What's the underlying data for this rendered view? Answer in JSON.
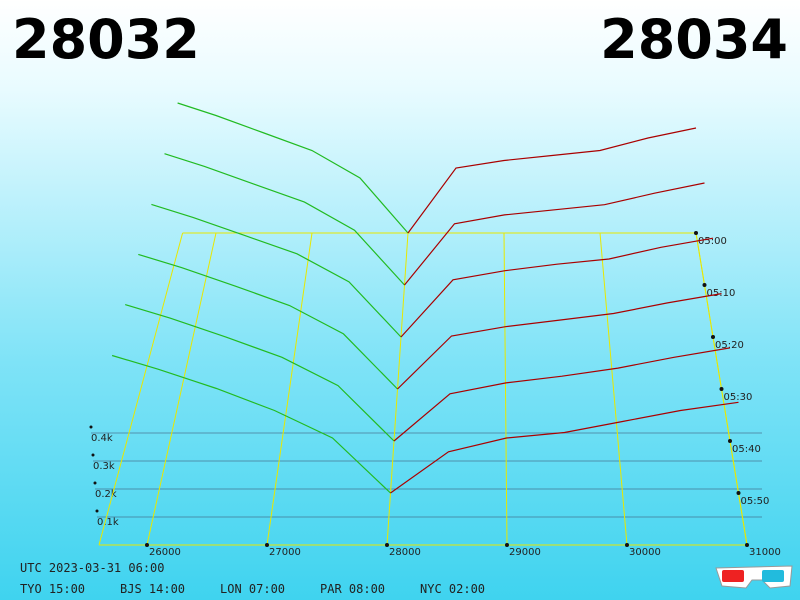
{
  "chart_data": {
    "type": "depth3d",
    "bid_price": 28032,
    "ask_price": 28034,
    "bid_color": "#22bb22",
    "ask_color": "#aa0000",
    "xticks": [
      26000,
      27000,
      28000,
      29000,
      30000,
      31000
    ],
    "depth_ticks": [
      {
        "value": 100,
        "label": "0.1k"
      },
      {
        "value": 200,
        "label": "0.2k"
      },
      {
        "value": 300,
        "label": "0.3k"
      },
      {
        "value": 400,
        "label": "0.4k"
      }
    ],
    "bid_prices": [
      25600,
      26000,
      26500,
      27000,
      27500,
      28000
    ],
    "ask_prices": [
      28000,
      28500,
      29000,
      29500,
      30000,
      30500,
      31000
    ],
    "slices": [
      {
        "time": "05:00",
        "bids": [
          520,
          470,
          400,
          330,
          220,
          0
        ],
        "asks": [
          0,
          260,
          290,
          310,
          330,
          380,
          420
        ]
      },
      {
        "time": "05:10",
        "bids": [
          515,
          465,
          395,
          325,
          215,
          0
        ],
        "asks": [
          0,
          240,
          275,
          295,
          315,
          360,
          400
        ]
      },
      {
        "time": "05:20",
        "bids": [
          510,
          460,
          390,
          320,
          212,
          0
        ],
        "asks": [
          0,
          220,
          255,
          280,
          300,
          345,
          380
        ]
      },
      {
        "time": "05:30",
        "bids": [
          508,
          458,
          388,
          315,
          208,
          0
        ],
        "asks": [
          0,
          200,
          235,
          260,
          285,
          325,
          360
        ]
      },
      {
        "time": "05:40",
        "bids": [
          505,
          455,
          385,
          310,
          205,
          0
        ],
        "asks": [
          0,
          175,
          215,
          240,
          270,
          310,
          345
        ]
      },
      {
        "time": "05:50",
        "bids": [
          500,
          450,
          380,
          300,
          200,
          0
        ],
        "asks": [
          0,
          150,
          200,
          220,
          260,
          300,
          330
        ]
      }
    ],
    "footer": {
      "utc": "UTC 2023-03-31 06:00",
      "cities": [
        "TYO 15:00",
        "BJS 14:00",
        "LON 07:00",
        "PAR 08:00",
        "NYC 02:00"
      ]
    }
  }
}
